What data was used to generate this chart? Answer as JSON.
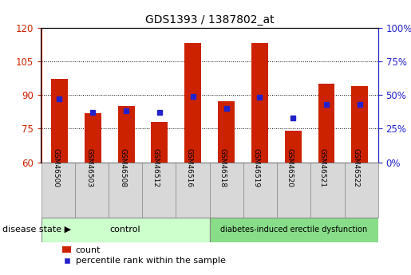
{
  "title": "GDS1393 / 1387802_at",
  "samples": [
    "GSM46500",
    "GSM46503",
    "GSM46508",
    "GSM46512",
    "GSM46516",
    "GSM46518",
    "GSM46519",
    "GSM46520",
    "GSM46521",
    "GSM46522"
  ],
  "count_values": [
    97,
    82,
    85,
    78,
    113,
    87,
    113,
    74,
    95,
    94
  ],
  "percentile_values": [
    47,
    37,
    38,
    37,
    49,
    40,
    48,
    33,
    43,
    43
  ],
  "ylim_left": [
    60,
    120
  ],
  "ylim_right": [
    0,
    100
  ],
  "yticks_left": [
    60,
    75,
    90,
    105,
    120
  ],
  "yticks_right": [
    0,
    25,
    50,
    75,
    100
  ],
  "bar_color": "#cc2200",
  "square_color": "#2222cc",
  "bar_bottom": 60,
  "control_count": 5,
  "disease_count": 5,
  "control_label": "control",
  "disease_label": "diabetes-induced erectile dysfunction",
  "group_label": "disease state",
  "legend_count": "count",
  "legend_percentile": "percentile rank within the sample",
  "bar_color_hex": "#cc2200",
  "square_color_hex": "#2222cc",
  "left_axis_color": "#cc2200",
  "right_axis_color": "#2222cc",
  "bar_width": 0.5,
  "control_bg": "#ccffcc",
  "disease_bg": "#88dd88",
  "sample_box_bg": "#d8d8d8",
  "plot_bg": "#ffffff"
}
